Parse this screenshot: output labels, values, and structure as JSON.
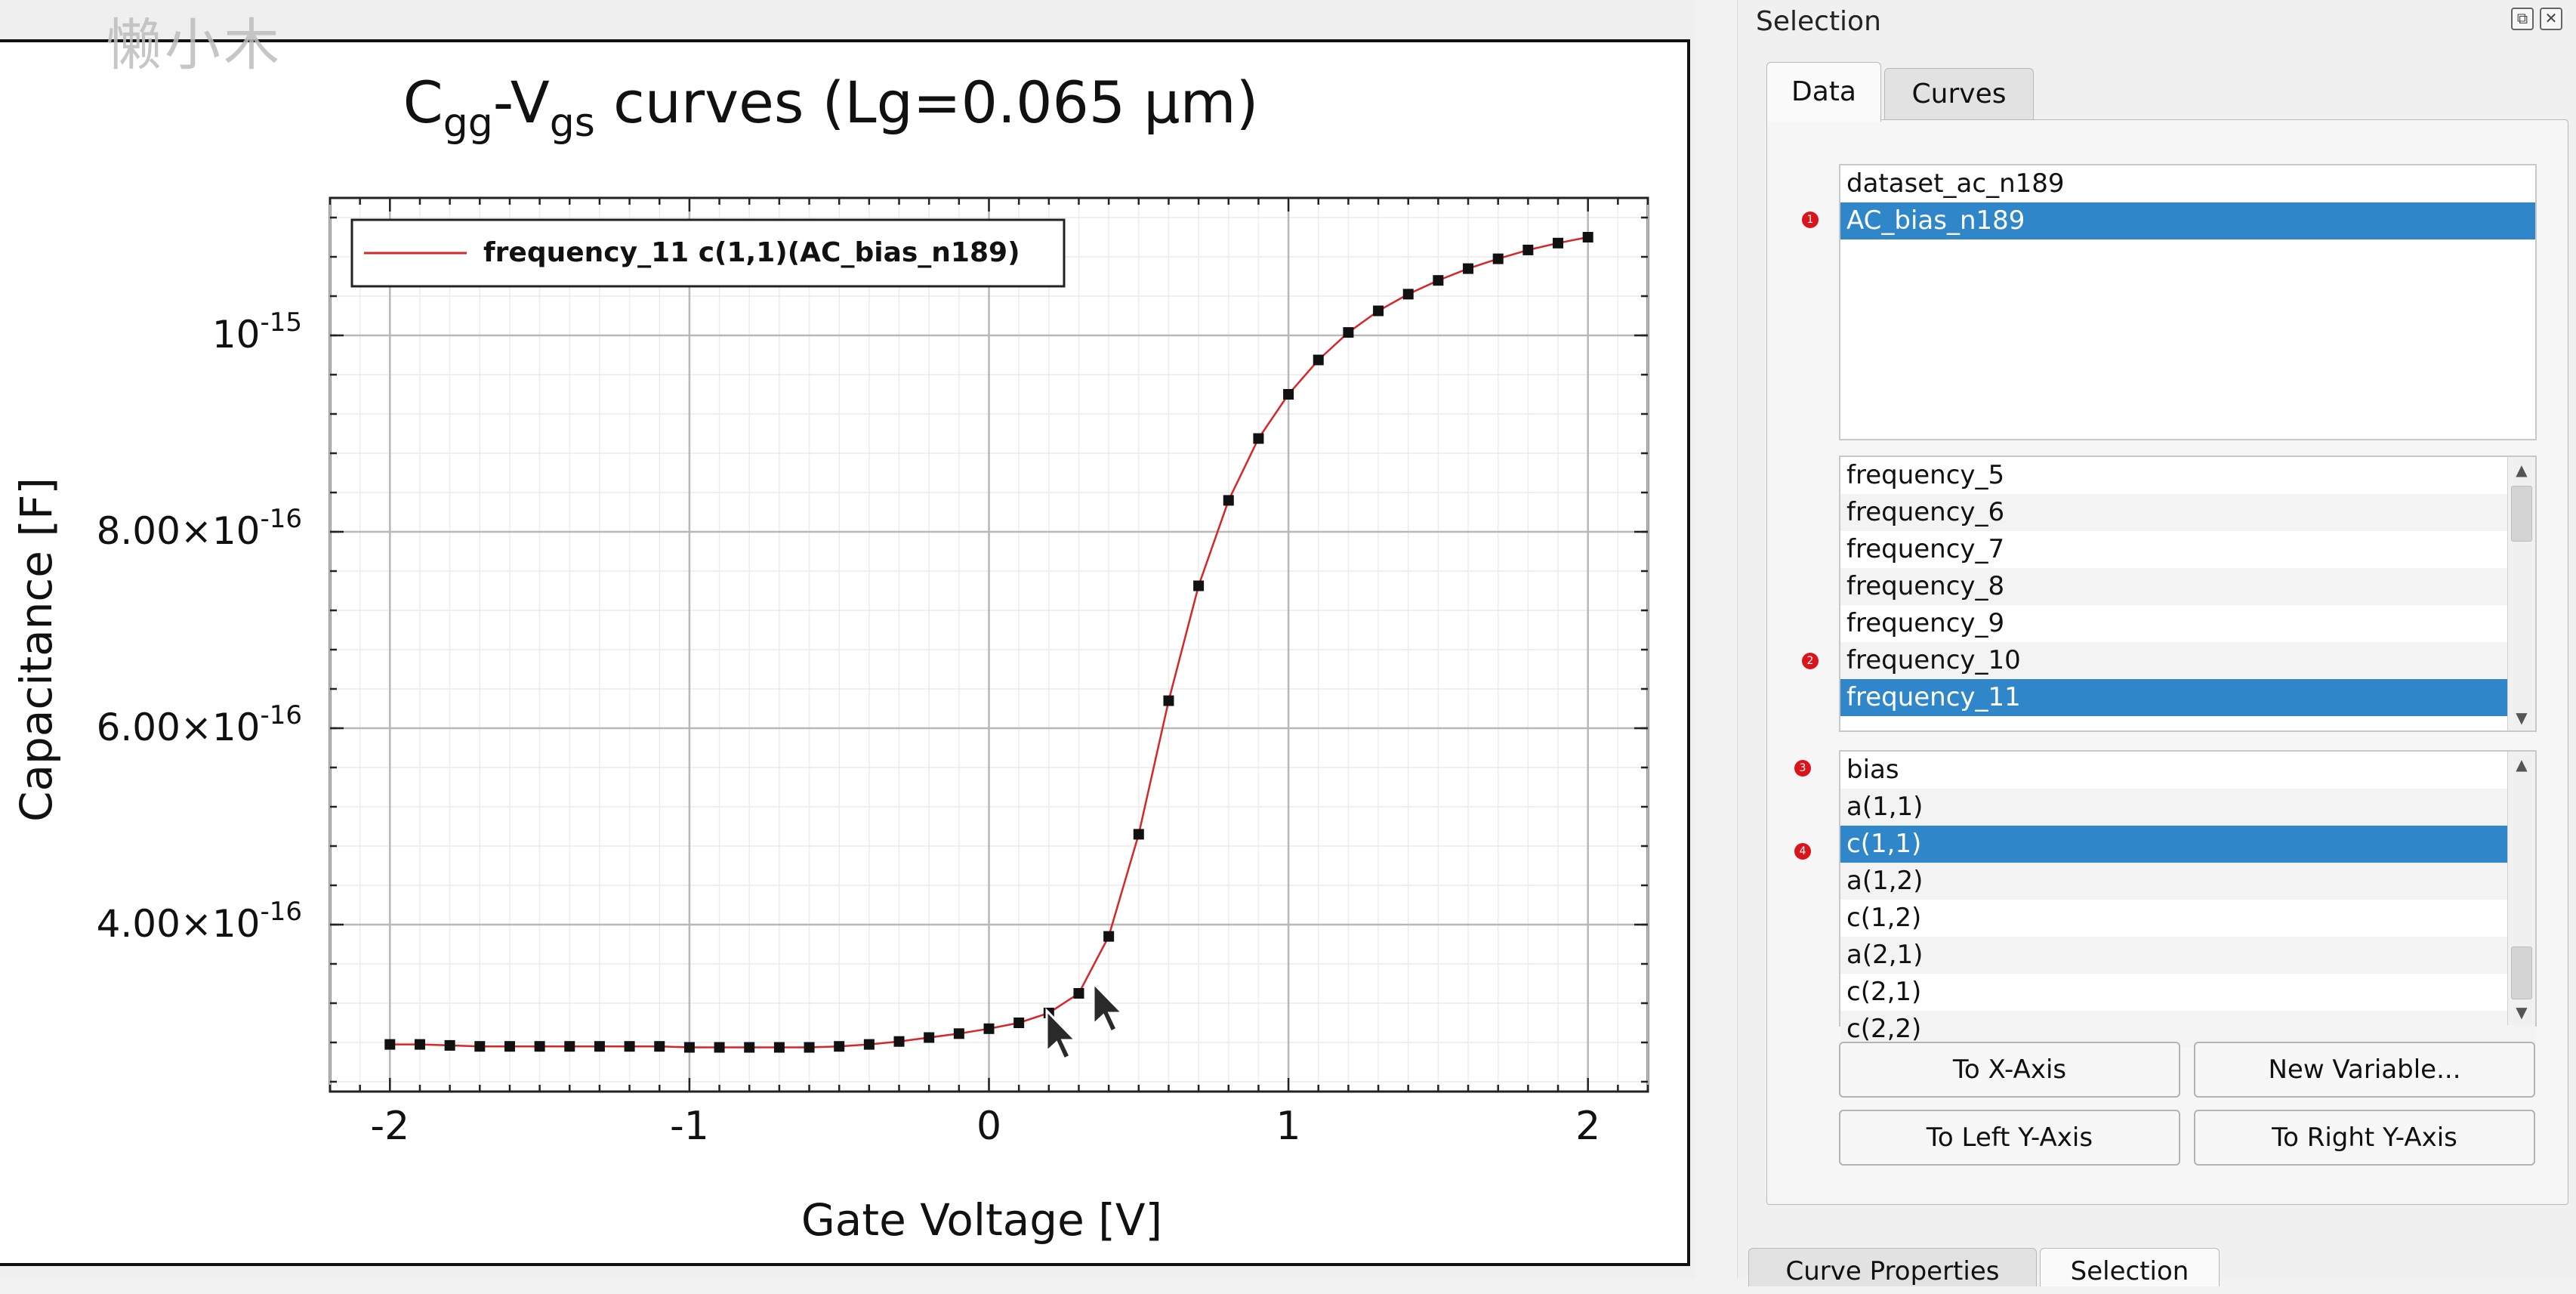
{
  "chart_data": {
    "type": "line",
    "title_parts": {
      "c": "C",
      "gg": "gg",
      "dash": "-V",
      "gs": "gs",
      "rest": " curves (Lg=0.065 µm)"
    },
    "xlabel": "Gate Voltage [V]",
    "ylabel": "Capacitance [F]",
    "xlim": [
      -2.2,
      2.2
    ],
    "ylim": [
      2.3e-16,
      1.14e-15
    ],
    "x_ticks": [
      -2,
      -1,
      0,
      1,
      2
    ],
    "x_tick_labels": [
      "-2",
      "-1",
      "0",
      "1",
      "2"
    ],
    "y_ticks": [
      4e-16,
      6e-16,
      8e-16,
      1e-15
    ],
    "y_tick_labels": [
      {
        "mant": "4.00×10",
        "exp": "-16"
      },
      {
        "mant": "6.00×10",
        "exp": "-16"
      },
      {
        "mant": "8.00×10",
        "exp": "-16"
      },
      {
        "mant": "10",
        "exp": "-15"
      }
    ],
    "grid": true,
    "legend_position": "top-left",
    "series": [
      {
        "name": "frequency_11 c(1,1)(AC_bias_n189)",
        "color": "#d62728",
        "marker": "square",
        "x": [
          -2.0,
          -1.9,
          -1.8,
          -1.7,
          -1.6,
          -1.5,
          -1.4,
          -1.3,
          -1.2,
          -1.1,
          -1.0,
          -0.9,
          -0.8,
          -0.7,
          -0.6,
          -0.5,
          -0.4,
          -0.3,
          -0.2,
          -0.1,
          0.0,
          0.1,
          0.2,
          0.3,
          0.4,
          0.5,
          0.6,
          0.7,
          0.8,
          0.9,
          1.0,
          1.1,
          1.2,
          1.3,
          1.4,
          1.5,
          1.6,
          1.7,
          1.8,
          1.9,
          2.0
        ],
        "y": [
          2.78e-16,
          2.78e-16,
          2.77e-16,
          2.76e-16,
          2.76e-16,
          2.76e-16,
          2.76e-16,
          2.76e-16,
          2.76e-16,
          2.76e-16,
          2.75e-16,
          2.75e-16,
          2.75e-16,
          2.75e-16,
          2.75e-16,
          2.76e-16,
          2.78e-16,
          2.81e-16,
          2.85e-16,
          2.89e-16,
          2.94e-16,
          3e-16,
          3.1e-16,
          3.3e-16,
          3.88e-16,
          4.92e-16,
          6.28e-16,
          7.45e-16,
          8.32e-16,
          8.95e-16,
          9.4e-16,
          9.75e-16,
          1.003e-15,
          1.025e-15,
          1.042e-15,
          1.056e-15,
          1.068e-15,
          1.078e-15,
          1.087e-15,
          1.094e-15,
          1.1e-15
        ]
      }
    ]
  },
  "watermark": "懒小木",
  "panel": {
    "title": "Selection",
    "tabs": [
      "Data",
      "Curves"
    ],
    "datasets": [
      "dataset_ac_n189",
      "AC_bias_n189"
    ],
    "datasets_selected": 1,
    "groups": [
      "frequency_5",
      "frequency_6",
      "frequency_7",
      "frequency_8",
      "frequency_9",
      "frequency_10",
      "frequency_11"
    ],
    "groups_selected": 6,
    "variables": [
      "bias",
      "a(1,1)",
      "c(1,1)",
      "a(1,2)",
      "c(1,2)",
      "a(2,1)",
      "c(2,1)",
      "c(2,2)"
    ],
    "variables_selected": 2,
    "markers": [
      "1",
      "2",
      "3",
      "4"
    ],
    "buttons": {
      "to_x": "To X-Axis",
      "new_var": "New Variable...",
      "to_left_y": "To Left Y-Axis",
      "to_right_y": "To Right Y-Axis"
    },
    "bottom_tabs": [
      "Curve Properties",
      "Selection"
    ]
  },
  "icons": {
    "float": "float-icon",
    "close": "close-icon",
    "scroll_up": "arrow-up-icon",
    "scroll_down": "arrow-down-icon"
  }
}
